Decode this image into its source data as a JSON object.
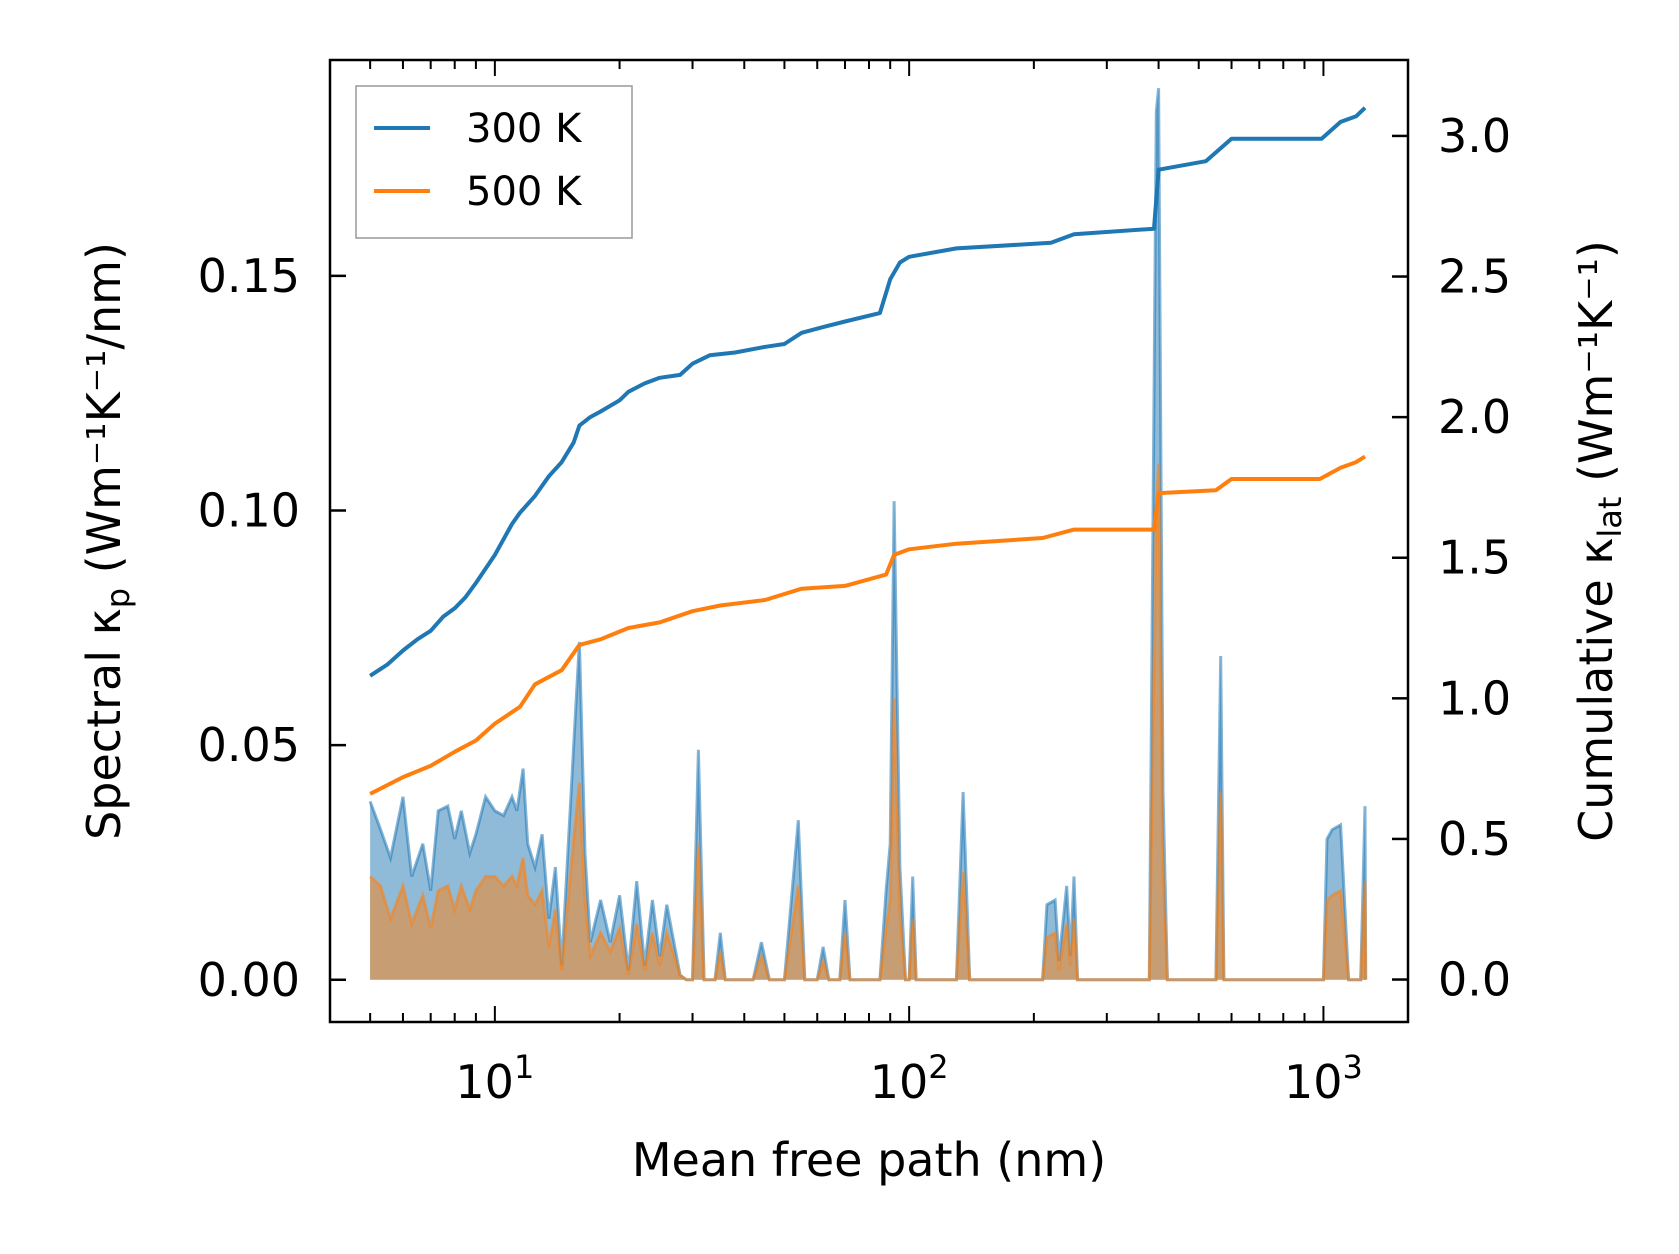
{
  "chart_data": {
    "type": "line",
    "title": "",
    "xlabel": "Mean free path (nm)",
    "xscale": "log",
    "xlim": [
      4,
      1600
    ],
    "x_ticks": [
      {
        "value": 10,
        "base": "10",
        "exp": "1"
      },
      {
        "value": 100,
        "base": "10",
        "exp": "2"
      },
      {
        "value": 1000,
        "base": "10",
        "exp": "3"
      }
    ],
    "ylabel_left": {
      "prefix": "Spectral κ",
      "sub": "p",
      "units": " (Wm⁻¹K⁻¹/nm)"
    },
    "ylabel_right": {
      "prefix": "Cumulative κ",
      "sub": "lat",
      "units": " (Wm⁻¹K⁻¹)"
    },
    "ylim_left": [
      -0.009,
      0.196
    ],
    "ylim_right": [
      -0.151,
      3.27
    ],
    "yticks_left": [
      "0.00",
      "0.05",
      "0.10",
      "0.15"
    ],
    "yticks_right": [
      "0.0",
      "0.5",
      "1.0",
      "1.5",
      "2.0",
      "2.5",
      "3.0"
    ],
    "legend_location": "top-left",
    "colors": {
      "300 K": "#1f77b4",
      "500 K": "#ff7f0e"
    },
    "series": [
      {
        "name": "300 K",
        "axis": "right",
        "kind": "cumulative",
        "points": [
          [
            5,
            1.08
          ],
          [
            5.5,
            1.12
          ],
          [
            6,
            1.17
          ],
          [
            6.5,
            1.21
          ],
          [
            7,
            1.24
          ],
          [
            7.5,
            1.29
          ],
          [
            8,
            1.32
          ],
          [
            8.5,
            1.36
          ],
          [
            9,
            1.41
          ],
          [
            10,
            1.51
          ],
          [
            11,
            1.62
          ],
          [
            11.5,
            1.66
          ],
          [
            12.5,
            1.72
          ],
          [
            13.5,
            1.79
          ],
          [
            14.5,
            1.84
          ],
          [
            15.5,
            1.91
          ],
          [
            16,
            1.97
          ],
          [
            17,
            2.0
          ],
          [
            18,
            2.02
          ],
          [
            20,
            2.06
          ],
          [
            21,
            2.09
          ],
          [
            23,
            2.12
          ],
          [
            25,
            2.14
          ],
          [
            28,
            2.15
          ],
          [
            30,
            2.19
          ],
          [
            33,
            2.22
          ],
          [
            38,
            2.23
          ],
          [
            45,
            2.25
          ],
          [
            50,
            2.26
          ],
          [
            55,
            2.3
          ],
          [
            62,
            2.32
          ],
          [
            70,
            2.34
          ],
          [
            85,
            2.37
          ],
          [
            90,
            2.49
          ],
          [
            95,
            2.55
          ],
          [
            100,
            2.57
          ],
          [
            130,
            2.6
          ],
          [
            220,
            2.62
          ],
          [
            250,
            2.65
          ],
          [
            390,
            2.67
          ],
          [
            400,
            2.88
          ],
          [
            520,
            2.91
          ],
          [
            600,
            2.99
          ],
          [
            990,
            2.99
          ],
          [
            1100,
            3.05
          ],
          [
            1200,
            3.07
          ],
          [
            1260,
            3.1
          ]
        ]
      },
      {
        "name": "500 K",
        "axis": "right",
        "kind": "cumulative",
        "points": [
          [
            5,
            0.66
          ],
          [
            6,
            0.72
          ],
          [
            7,
            0.76
          ],
          [
            8,
            0.81
          ],
          [
            9,
            0.85
          ],
          [
            10,
            0.91
          ],
          [
            11.5,
            0.97
          ],
          [
            12.5,
            1.05
          ],
          [
            14.5,
            1.1
          ],
          [
            16,
            1.19
          ],
          [
            18,
            1.21
          ],
          [
            21,
            1.25
          ],
          [
            25,
            1.27
          ],
          [
            30,
            1.31
          ],
          [
            35,
            1.33
          ],
          [
            45,
            1.35
          ],
          [
            55,
            1.39
          ],
          [
            70,
            1.4
          ],
          [
            88,
            1.44
          ],
          [
            92,
            1.51
          ],
          [
            100,
            1.53
          ],
          [
            130,
            1.55
          ],
          [
            210,
            1.57
          ],
          [
            250,
            1.6
          ],
          [
            390,
            1.6
          ],
          [
            400,
            1.73
          ],
          [
            550,
            1.74
          ],
          [
            600,
            1.78
          ],
          [
            980,
            1.78
          ],
          [
            1100,
            1.82
          ],
          [
            1200,
            1.84
          ],
          [
            1260,
            1.86
          ]
        ]
      },
      {
        "name": "300 K",
        "axis": "left",
        "kind": "spectral",
        "points": [
          [
            5,
            0.038
          ],
          [
            5.3,
            0.032
          ],
          [
            5.6,
            0.026
          ],
          [
            6,
            0.039
          ],
          [
            6.3,
            0.022
          ],
          [
            6.7,
            0.029
          ],
          [
            7,
            0.019
          ],
          [
            7.3,
            0.036
          ],
          [
            7.7,
            0.037
          ],
          [
            8,
            0.03
          ],
          [
            8.3,
            0.036
          ],
          [
            8.7,
            0.027
          ],
          [
            9,
            0.031
          ],
          [
            9.5,
            0.039
          ],
          [
            10,
            0.036
          ],
          [
            10.5,
            0.035
          ],
          [
            11,
            0.039
          ],
          [
            11.3,
            0.036
          ],
          [
            11.7,
            0.045
          ],
          [
            12,
            0.029
          ],
          [
            12.5,
            0.024
          ],
          [
            13,
            0.031
          ],
          [
            13.5,
            0.013
          ],
          [
            14,
            0.024
          ],
          [
            14.5,
            0.003
          ],
          [
            15.5,
            0.05
          ],
          [
            16,
            0.072
          ],
          [
            16.5,
            0.027
          ],
          [
            17,
            0.008
          ],
          [
            18,
            0.017
          ],
          [
            19,
            0.008
          ],
          [
            20,
            0.018
          ],
          [
            21,
            0.002
          ],
          [
            22,
            0.021
          ],
          [
            23,
            0.003
          ],
          [
            24,
            0.017
          ],
          [
            25,
            0.005
          ],
          [
            26,
            0.016
          ],
          [
            28,
            0.001
          ],
          [
            29,
            0.0
          ],
          [
            30,
            0.0
          ],
          [
            31,
            0.049
          ],
          [
            32,
            0.0
          ],
          [
            34,
            0.0
          ],
          [
            35,
            0.01
          ],
          [
            36,
            0.0
          ],
          [
            42,
            0.0
          ],
          [
            44,
            0.008
          ],
          [
            46,
            0.0
          ],
          [
            50,
            0.0
          ],
          [
            54,
            0.034
          ],
          [
            56,
            0.0
          ],
          [
            60,
            0.0
          ],
          [
            62,
            0.007
          ],
          [
            64,
            0.0
          ],
          [
            68,
            0.0
          ],
          [
            70,
            0.017
          ],
          [
            72,
            0.0
          ],
          [
            85,
            0.0
          ],
          [
            88,
            0.019
          ],
          [
            90,
            0.029
          ],
          [
            92,
            0.102
          ],
          [
            95,
            0.024
          ],
          [
            98,
            0.0
          ],
          [
            100,
            0.0
          ],
          [
            102,
            0.022
          ],
          [
            104,
            0.0
          ],
          [
            130,
            0.0
          ],
          [
            135,
            0.04
          ],
          [
            140,
            0.0
          ],
          [
            210,
            0.0
          ],
          [
            215,
            0.016
          ],
          [
            225,
            0.017
          ],
          [
            230,
            0.004
          ],
          [
            240,
            0.02
          ],
          [
            245,
            0.005
          ],
          [
            250,
            0.022
          ],
          [
            255,
            0.0
          ],
          [
            380,
            0.0
          ],
          [
            395,
            0.185
          ],
          [
            400,
            0.19
          ],
          [
            410,
            0.04
          ],
          [
            420,
            0.0
          ],
          [
            550,
            0.0
          ],
          [
            565,
            0.069
          ],
          [
            575,
            0.0
          ],
          [
            1000,
            0.0
          ],
          [
            1020,
            0.03
          ],
          [
            1050,
            0.032
          ],
          [
            1100,
            0.033
          ],
          [
            1150,
            0.0
          ],
          [
            1230,
            0.0
          ],
          [
            1260,
            0.037
          ],
          [
            1265,
            0.0
          ]
        ]
      },
      {
        "name": "500 K",
        "axis": "left",
        "kind": "spectral",
        "points": [
          [
            5,
            0.022
          ],
          [
            5.3,
            0.02
          ],
          [
            5.6,
            0.013
          ],
          [
            6,
            0.02
          ],
          [
            6.3,
            0.012
          ],
          [
            6.7,
            0.018
          ],
          [
            7,
            0.011
          ],
          [
            7.3,
            0.019
          ],
          [
            7.7,
            0.02
          ],
          [
            8,
            0.015
          ],
          [
            8.3,
            0.02
          ],
          [
            8.7,
            0.015
          ],
          [
            9,
            0.019
          ],
          [
            9.5,
            0.022
          ],
          [
            10,
            0.022
          ],
          [
            10.5,
            0.02
          ],
          [
            11,
            0.022
          ],
          [
            11.3,
            0.02
          ],
          [
            11.7,
            0.026
          ],
          [
            12,
            0.018
          ],
          [
            12.5,
            0.016
          ],
          [
            13,
            0.019
          ],
          [
            13.5,
            0.007
          ],
          [
            14,
            0.015
          ],
          [
            14.5,
            0.002
          ],
          [
            15.5,
            0.03
          ],
          [
            16,
            0.042
          ],
          [
            16.5,
            0.017
          ],
          [
            17,
            0.005
          ],
          [
            18,
            0.01
          ],
          [
            19,
            0.006
          ],
          [
            20,
            0.011
          ],
          [
            21,
            0.001
          ],
          [
            22,
            0.012
          ],
          [
            23,
            0.002
          ],
          [
            24,
            0.01
          ],
          [
            25,
            0.003
          ],
          [
            26,
            0.01
          ],
          [
            28,
            0.001
          ],
          [
            29,
            0.0
          ],
          [
            30,
            0.0
          ],
          [
            31,
            0.029
          ],
          [
            32,
            0.0
          ],
          [
            34,
            0.0
          ],
          [
            35,
            0.006
          ],
          [
            36,
            0.0
          ],
          [
            42,
            0.0
          ],
          [
            44,
            0.005
          ],
          [
            46,
            0.0
          ],
          [
            50,
            0.0
          ],
          [
            54,
            0.02
          ],
          [
            56,
            0.0
          ],
          [
            60,
            0.0
          ],
          [
            62,
            0.004
          ],
          [
            64,
            0.0
          ],
          [
            68,
            0.0
          ],
          [
            70,
            0.01
          ],
          [
            72,
            0.0
          ],
          [
            85,
            0.0
          ],
          [
            88,
            0.011
          ],
          [
            90,
            0.017
          ],
          [
            92,
            0.06
          ],
          [
            95,
            0.014
          ],
          [
            98,
            0.0
          ],
          [
            100,
            0.0
          ],
          [
            102,
            0.013
          ],
          [
            104,
            0.0
          ],
          [
            130,
            0.0
          ],
          [
            135,
            0.023
          ],
          [
            140,
            0.0
          ],
          [
            210,
            0.0
          ],
          [
            215,
            0.009
          ],
          [
            225,
            0.01
          ],
          [
            230,
            0.002
          ],
          [
            240,
            0.012
          ],
          [
            245,
            0.003
          ],
          [
            250,
            0.013
          ],
          [
            255,
            0.0
          ],
          [
            380,
            0.0
          ],
          [
            395,
            0.1
          ],
          [
            400,
            0.11
          ],
          [
            410,
            0.023
          ],
          [
            420,
            0.0
          ],
          [
            550,
            0.0
          ],
          [
            565,
            0.04
          ],
          [
            575,
            0.0
          ],
          [
            1000,
            0.0
          ],
          [
            1020,
            0.017
          ],
          [
            1050,
            0.018
          ],
          [
            1100,
            0.019
          ],
          [
            1150,
            0.0
          ],
          [
            1230,
            0.0
          ],
          [
            1260,
            0.021
          ],
          [
            1265,
            0.0
          ]
        ]
      }
    ]
  }
}
